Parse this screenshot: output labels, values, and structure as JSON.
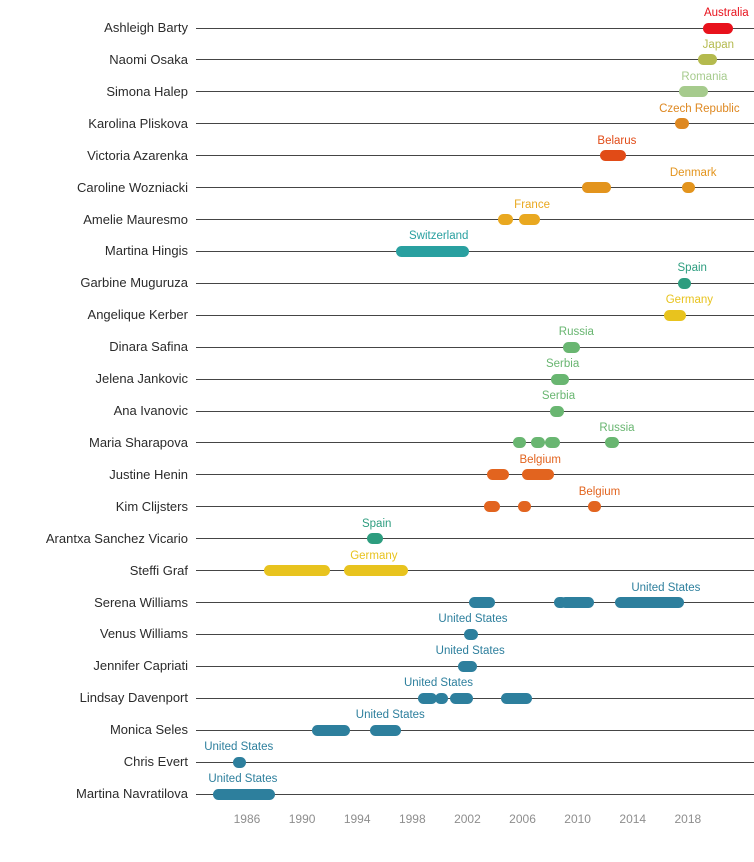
{
  "chart_data": {
    "type": "scatter",
    "title": "",
    "description": "Timeline of women's tennis world No. 1 players; dots mark periods ranked No. 1, colored and labeled by country.",
    "grid": "horizontal row lines",
    "legend": "none (country labels annotated above dots)",
    "x_axis": {
      "min": 1982.3,
      "max": 2022.8,
      "ticks": [
        1986,
        1990,
        1994,
        1998,
        2002,
        2006,
        2010,
        2014,
        2018
      ]
    },
    "country_colors": {
      "Australia": "#e8121c",
      "Japan": "#b4ba4e",
      "Romania": "#a6cb8d",
      "Czech Republic": "#de8821",
      "Belarus": "#e14b17",
      "Denmark": "#e3941d",
      "France": "#e9a820",
      "Switzerland": "#29a0a0",
      "Spain": "#2d9d7f",
      "Germany": "#e8c31e",
      "Russia": "#69b671",
      "Serbia": "#69b671",
      "Belgium": "#e2641f",
      "United States": "#2d7f9d"
    },
    "players": [
      {
        "name": "Ashleigh Barty",
        "country": "Australia",
        "label_year": 2020.8,
        "segments": [
          [
            2019.5,
            2020.9
          ]
        ]
      },
      {
        "name": "Naomi Osaka",
        "country": "Japan",
        "label_year": 2020.2,
        "segments": [
          [
            2019.1,
            2019.7
          ]
        ]
      },
      {
        "name": "Simona Halep",
        "country": "Romania",
        "label_year": 2019.2,
        "segments": [
          [
            2017.75,
            2019.05
          ]
        ]
      },
      {
        "name": "Karolina Pliskova",
        "country": "Czech Republic",
        "label_year": 2018.85,
        "segments": [
          [
            2017.5,
            2017.65
          ]
        ]
      },
      {
        "name": "Victoria Azarenka",
        "country": "Belarus",
        "label_year": 2012.85,
        "segments": [
          [
            2012.05,
            2013.1
          ]
        ]
      },
      {
        "name": "Caroline Wozniacki",
        "country": "Denmark",
        "label_year": 2018.4,
        "segments": [
          [
            2010.75,
            2012.0
          ],
          [
            2018.0,
            2018.15
          ]
        ]
      },
      {
        "name": "Amelie Mauresmo",
        "country": "France",
        "label_year": 2006.7,
        "segments": [
          [
            2004.65,
            2004.9
          ],
          [
            2006.15,
            2006.85
          ]
        ]
      },
      {
        "name": "Martina Hingis",
        "country": "Switzerland",
        "label_year": 1999.9,
        "segments": [
          [
            1997.2,
            2001.75
          ]
        ]
      },
      {
        "name": "Garbine Muguruza",
        "country": "Spain",
        "label_year": 2018.3,
        "segments": [
          [
            2017.65,
            2017.8
          ]
        ]
      },
      {
        "name": "Angelique Kerber",
        "country": "Germany",
        "label_year": 2018.1,
        "segments": [
          [
            2016.65,
            2017.5
          ]
        ]
      },
      {
        "name": "Dinara Safina",
        "country": "Russia",
        "label_year": 2009.9,
        "segments": [
          [
            2009.3,
            2009.8
          ]
        ]
      },
      {
        "name": "Jelena Jankovic",
        "country": "Serbia",
        "label_year": 2008.9,
        "segments": [
          [
            2008.5,
            2009.0
          ]
        ]
      },
      {
        "name": "Ana Ivanovic",
        "country": "Serbia",
        "label_year": 2008.6,
        "segments": [
          [
            2008.4,
            2008.6
          ]
        ]
      },
      {
        "name": "Maria Sharapova",
        "country": "Russia",
        "label_year": 2012.85,
        "segments": [
          [
            2005.7,
            2005.85
          ],
          [
            2007.0,
            2007.2
          ],
          [
            2008.05,
            2008.3
          ],
          [
            2012.4,
            2012.6
          ]
        ]
      },
      {
        "name": "Justine Henin",
        "country": "Belgium",
        "label_year": 2007.3,
        "segments": [
          [
            2003.8,
            2004.65
          ],
          [
            2006.35,
            2007.9
          ]
        ]
      },
      {
        "name": "Kim Clijsters",
        "country": "Belgium",
        "label_year": 2011.6,
        "segments": [
          [
            2003.6,
            2003.95
          ],
          [
            2006.05,
            2006.2
          ],
          [
            2011.15,
            2011.3
          ]
        ]
      },
      {
        "name": "Arantxa Sanchez Vicario",
        "country": "Spain",
        "label_year": 1995.4,
        "segments": [
          [
            1995.1,
            1995.5
          ]
        ]
      },
      {
        "name": "Steffi Graf",
        "country": "Germany",
        "label_year": 1995.2,
        "segments": [
          [
            1987.6,
            1991.6
          ],
          [
            1993.45,
            1997.3
          ]
        ]
      },
      {
        "name": "Serena Williams",
        "country": "United States",
        "label_year": 2016.4,
        "segments": [
          [
            2002.5,
            2003.6
          ],
          [
            2008.65,
            2008.8
          ],
          [
            2009.1,
            2010.8
          ],
          [
            2013.1,
            2017.35
          ]
        ]
      },
      {
        "name": "Venus Williams",
        "country": "United States",
        "label_year": 2002.4,
        "segments": [
          [
            2002.15,
            2002.4
          ]
        ]
      },
      {
        "name": "Jennifer Capriati",
        "country": "United States",
        "label_year": 2002.2,
        "segments": [
          [
            2001.75,
            2002.3
          ]
        ]
      },
      {
        "name": "Lindsay Davenport",
        "country": "United States",
        "label_year": 1999.9,
        "segments": [
          [
            1998.8,
            1999.4
          ],
          [
            2000.05,
            2000.2
          ],
          [
            2001.1,
            2002.0
          ],
          [
            2004.8,
            2006.3
          ]
        ]
      },
      {
        "name": "Monica Seles",
        "country": "United States",
        "label_year": 1996.4,
        "segments": [
          [
            1991.15,
            1993.05
          ],
          [
            1995.35,
            1996.75
          ]
        ]
      },
      {
        "name": "Chris Evert",
        "country": "United States",
        "label_year": 1985.4,
        "segments": [
          [
            1985.35,
            1985.55
          ]
        ]
      },
      {
        "name": "Martina Navratilova",
        "country": "United States",
        "label_year": 1985.7,
        "segments": [
          [
            1983.9,
            1987.6
          ]
        ]
      }
    ]
  },
  "styles": {
    "background": "#ffffff",
    "row_line_color": "#454545",
    "player_label_color": "#2b2b2b",
    "tick_label_color": "#8e8e8e"
  }
}
